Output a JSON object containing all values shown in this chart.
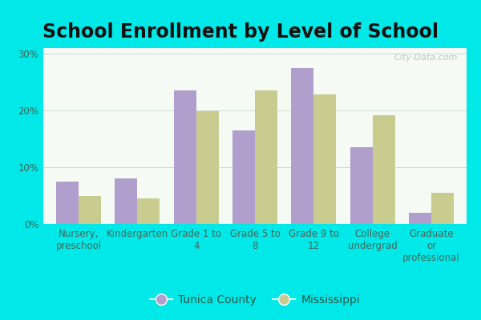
{
  "title": "School Enrollment by Level of School",
  "categories": [
    "Nursery,\npreschool",
    "Kindergarten",
    "Grade 1 to\n4",
    "Grade 5 to\n8",
    "Grade 9 to\n12",
    "College\nundergrad",
    "Graduate\nor\nprofessional"
  ],
  "tunica_values": [
    7.5,
    8.0,
    23.5,
    16.5,
    27.5,
    13.5,
    2.0
  ],
  "mississippi_values": [
    5.0,
    4.5,
    19.8,
    23.5,
    22.8,
    19.2,
    5.5
  ],
  "tunica_color": "#b09fcc",
  "mississippi_color": "#c8cc8f",
  "plot_bg_top": "#f5faf5",
  "plot_bg_bottom": "#d8f0e0",
  "outer_background": "#00e8e8",
  "ylabel_ticks": [
    "0%",
    "10%",
    "20%",
    "30%"
  ],
  "ytick_values": [
    0,
    10,
    20,
    30
  ],
  "ylim": [
    0,
    31
  ],
  "bar_width": 0.38,
  "legend_tunica": "Tunica County",
  "legend_mississippi": "Mississippi",
  "watermark": "City-Data.com",
  "title_fontsize": 17,
  "tick_fontsize": 8.5,
  "legend_fontsize": 10,
  "title_color": "#111111"
}
